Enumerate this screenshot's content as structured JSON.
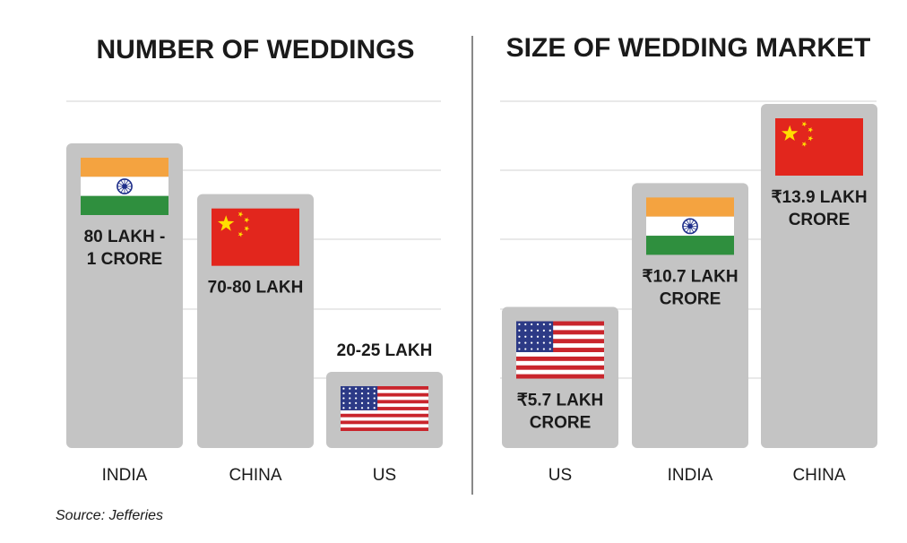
{
  "source": "Source: Jefferies",
  "chart_data": [
    {
      "type": "bar",
      "title": "NUMBER OF WEDDINGS",
      "categories": [
        "INDIA",
        "CHINA",
        "US"
      ],
      "flags": [
        "india-flag",
        "china-flag",
        "us-flag"
      ],
      "values": [
        9000000,
        7500000,
        2250000
      ],
      "value_labels": [
        [
          "80 LAKH -",
          "1 CRORE"
        ],
        [
          "70-80 LAKH"
        ],
        [
          "20-25 LAKH"
        ]
      ],
      "ylim": [
        0,
        10500000
      ],
      "grid": true
    },
    {
      "type": "bar",
      "title": "SIZE OF WEDDING MARKET",
      "categories": [
        "US",
        "INDIA",
        "CHINA"
      ],
      "flags": [
        "us-flag",
        "india-flag",
        "china-flag"
      ],
      "values": [
        5.7,
        10.7,
        13.9
      ],
      "value_labels": [
        [
          "₹5.7 LAKH",
          "CRORE"
        ],
        [
          "₹10.7 LAKH",
          "CRORE"
        ],
        [
          "₹13.9 LAKH",
          "CRORE"
        ]
      ],
      "ylim": [
        0,
        14.5
      ],
      "grid": true
    }
  ],
  "colors": {
    "bar": "#c4c4c4",
    "grid": "#dcdcdc",
    "divider": "#888888"
  }
}
